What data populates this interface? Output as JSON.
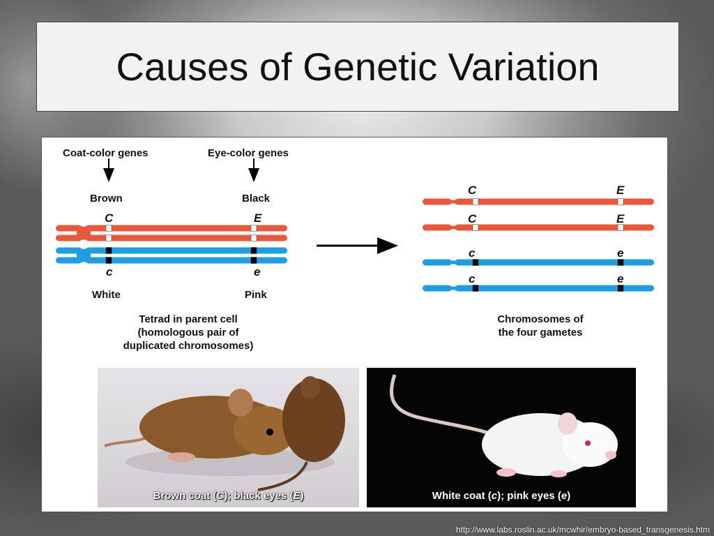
{
  "slide": {
    "title": "Causes of Genetic Variation",
    "source_url": "http://www.labs.roslin.ac.uk/mcwhir/embryo-based_transgenesis.htm"
  },
  "diagram": {
    "gene_labels": {
      "coat": "Coat-color genes",
      "eye": "Eye-color genes"
    },
    "trait_labels": {
      "brown": "Brown",
      "black": "Black",
      "white": "White",
      "pink": "Pink"
    },
    "alleles": {
      "coat_dominant": "C",
      "eye_dominant": "E",
      "coat_recessive": "c",
      "eye_recessive": "e"
    },
    "captions": {
      "tetrad_line1": "Tetrad in parent cell",
      "tetrad_line2": "(homologous pair of",
      "tetrad_line3": "duplicated chromosomes)",
      "gametes_line1": "Chromosomes of",
      "gametes_line2": "the four gametes"
    },
    "colors": {
      "maternal": "#e8583c",
      "paternal": "#1e9de0",
      "band_dominant": "#ffffff",
      "band_recessive": "#000000"
    }
  },
  "photos": {
    "brown": {
      "text_before": "Brown coat (",
      "allele1": "C",
      "text_mid": "); black eyes (",
      "allele2": "E",
      "text_after": ")"
    },
    "white": {
      "text_before": "White coat (",
      "allele1": "c",
      "text_mid": "); pink eyes (",
      "allele2": "e",
      "text_after": ")"
    }
  }
}
